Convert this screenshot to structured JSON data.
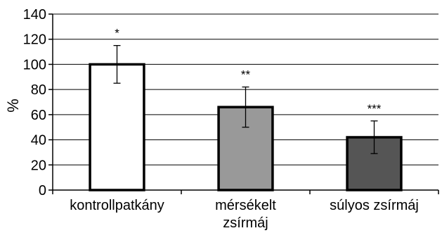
{
  "chart_data": {
    "type": "bar",
    "title": "",
    "xlabel": "",
    "ylabel": "%",
    "ylim": [
      0,
      140
    ],
    "yticks": [
      0,
      20,
      40,
      60,
      80,
      100,
      120,
      140
    ],
    "grid": true,
    "categories": [
      {
        "lines": [
          "kontrollpatkány"
        ]
      },
      {
        "lines": [
          "mérsékelt",
          "zsírmáj"
        ]
      },
      {
        "lines": [
          "súlyos zsírmáj"
        ]
      }
    ],
    "values": [
      100,
      66,
      42
    ],
    "error_low": [
      85,
      50,
      29
    ],
    "error_high": [
      115,
      82,
      55
    ],
    "significance": [
      "*",
      "**",
      "***"
    ],
    "bar_colors": [
      "#ffffff",
      "#999999",
      "#555555"
    ]
  }
}
